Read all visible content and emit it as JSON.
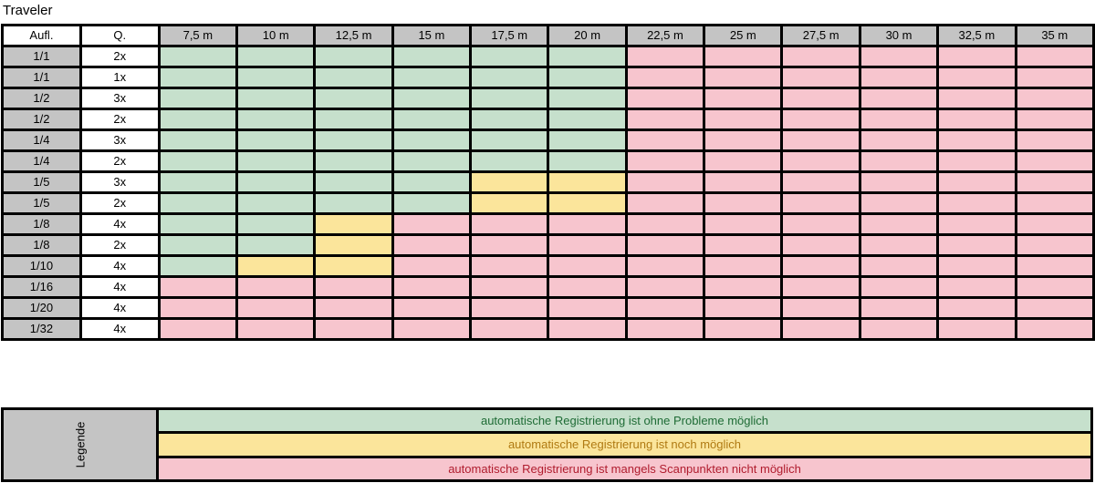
{
  "title": "Traveler",
  "headers": {
    "resolution": "Aufl.",
    "quality": "Q."
  },
  "colors": {
    "green": "#c6e0cc",
    "yellow": "#fbe59b",
    "red": "#f7c5ce"
  },
  "chart_data": {
    "type": "table",
    "columns": [
      "7,5 m",
      "10 m",
      "12,5 m",
      "15 m",
      "17,5 m",
      "20 m",
      "22,5 m",
      "25 m",
      "27,5 m",
      "30 m",
      "32,5 m",
      "35 m"
    ],
    "rows": [
      {
        "resolution": "1/1",
        "quality": "2x",
        "cells": [
          "g",
          "g",
          "g",
          "g",
          "g",
          "g",
          "r",
          "r",
          "r",
          "r",
          "r",
          "r"
        ]
      },
      {
        "resolution": "1/1",
        "quality": "1x",
        "cells": [
          "g",
          "g",
          "g",
          "g",
          "g",
          "g",
          "r",
          "r",
          "r",
          "r",
          "r",
          "r"
        ]
      },
      {
        "resolution": "1/2",
        "quality": "3x",
        "cells": [
          "g",
          "g",
          "g",
          "g",
          "g",
          "g",
          "r",
          "r",
          "r",
          "r",
          "r",
          "r"
        ]
      },
      {
        "resolution": "1/2",
        "quality": "2x",
        "cells": [
          "g",
          "g",
          "g",
          "g",
          "g",
          "g",
          "r",
          "r",
          "r",
          "r",
          "r",
          "r"
        ]
      },
      {
        "resolution": "1/4",
        "quality": "3x",
        "cells": [
          "g",
          "g",
          "g",
          "g",
          "g",
          "g",
          "r",
          "r",
          "r",
          "r",
          "r",
          "r"
        ]
      },
      {
        "resolution": "1/4",
        "quality": "2x",
        "cells": [
          "g",
          "g",
          "g",
          "g",
          "g",
          "g",
          "r",
          "r",
          "r",
          "r",
          "r",
          "r"
        ]
      },
      {
        "resolution": "1/5",
        "quality": "3x",
        "cells": [
          "g",
          "g",
          "g",
          "g",
          "y",
          "y",
          "r",
          "r",
          "r",
          "r",
          "r",
          "r"
        ]
      },
      {
        "resolution": "1/5",
        "quality": "2x",
        "cells": [
          "g",
          "g",
          "g",
          "g",
          "y",
          "y",
          "r",
          "r",
          "r",
          "r",
          "r",
          "r"
        ]
      },
      {
        "resolution": "1/8",
        "quality": "4x",
        "cells": [
          "g",
          "g",
          "y",
          "r",
          "r",
          "r",
          "r",
          "r",
          "r",
          "r",
          "r",
          "r"
        ]
      },
      {
        "resolution": "1/8",
        "quality": "2x",
        "cells": [
          "g",
          "g",
          "y",
          "r",
          "r",
          "r",
          "r",
          "r",
          "r",
          "r",
          "r",
          "r"
        ]
      },
      {
        "resolution": "1/10",
        "quality": "4x",
        "cells": [
          "g",
          "y",
          "y",
          "r",
          "r",
          "r",
          "r",
          "r",
          "r",
          "r",
          "r",
          "r"
        ]
      },
      {
        "resolution": "1/16",
        "quality": "4x",
        "cells": [
          "r",
          "r",
          "r",
          "r",
          "r",
          "r",
          "r",
          "r",
          "r",
          "r",
          "r",
          "r"
        ]
      },
      {
        "resolution": "1/20",
        "quality": "4x",
        "cells": [
          "r",
          "r",
          "r",
          "r",
          "r",
          "r",
          "r",
          "r",
          "r",
          "r",
          "r",
          "r"
        ]
      },
      {
        "resolution": "1/32",
        "quality": "4x",
        "cells": [
          "r",
          "r",
          "r",
          "r",
          "r",
          "r",
          "r",
          "r",
          "r",
          "r",
          "r",
          "r"
        ]
      }
    ],
    "legend_title": "Legende",
    "legend": [
      {
        "key": "g",
        "text": "automatische Registrierung ist ohne Probleme möglich",
        "text_color": "#1e6b35"
      },
      {
        "key": "y",
        "text": "automatische Registrierung ist noch möglich",
        "text_color": "#b07a12"
      },
      {
        "key": "r",
        "text": "automatische Registrierung ist mangels Scanpunkten nicht möglich",
        "text_color": "#b01c2e"
      }
    ]
  }
}
